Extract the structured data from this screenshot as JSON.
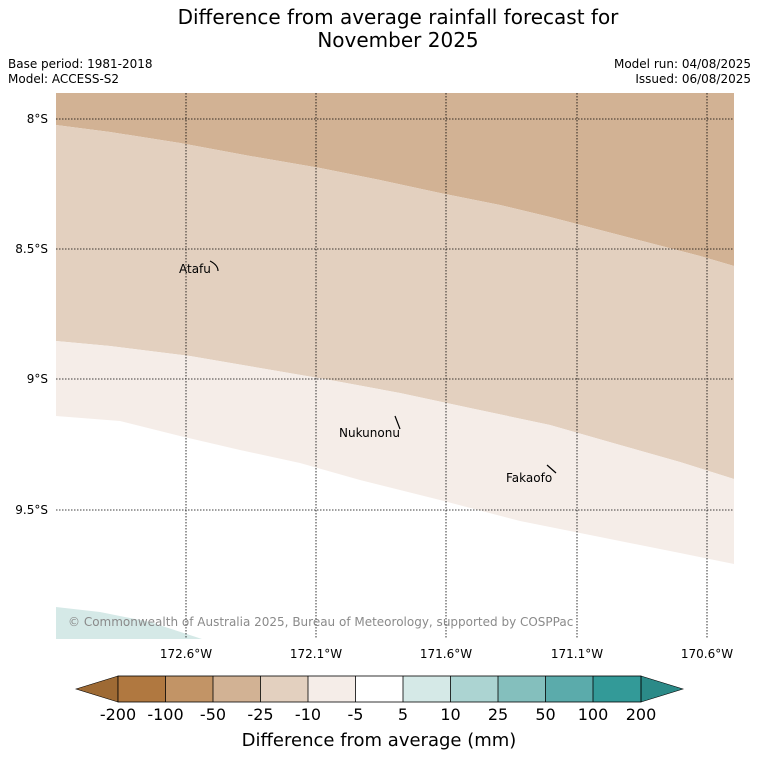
{
  "title_line1": "Difference from average rainfall forecast for",
  "title_line2": "November 2025",
  "meta": {
    "base_period": "Base period: 1981-2018",
    "model": "Model: ACCESS-S2",
    "model_run": "Model run: 04/08/2025",
    "issued": "Issued: 06/08/2025"
  },
  "map": {
    "lat_labels": [
      "8°S",
      "8.5°S",
      "9°S",
      "9.5°S"
    ],
    "lon_labels": [
      "172.6°W",
      "172.1°W",
      "171.6°W",
      "171.1°W",
      "170.6°W"
    ],
    "places": {
      "atafu": "Atafu",
      "nukunonu": "Nukunonu",
      "fakaofo": "Fakaofo"
    },
    "copyright": "© Commonwealth of Australia 2025, Bureau of Meteorology, supported by COSPPac",
    "colors": {
      "band_minus10_minus5": "#d2b294",
      "band_minus5_5": "#e3d0bf",
      "band_5_10": "#f5ede8",
      "band_10_25": "#d5e9e7"
    }
  },
  "colorbar": {
    "title": "Difference from average (mm)",
    "labels": [
      "-200",
      "-100",
      "-50",
      "-25",
      "-10",
      "-5",
      "5",
      "10",
      "25",
      "50",
      "100",
      "200"
    ],
    "colors": [
      "#9e6a34",
      "#b07840",
      "#c29466",
      "#d2b294",
      "#e3d0bf",
      "#f5ede8",
      "#ffffff",
      "#d5e9e7",
      "#acd4d2",
      "#84bfbd",
      "#5babab",
      "#339a98",
      "#2b8a88"
    ]
  }
}
